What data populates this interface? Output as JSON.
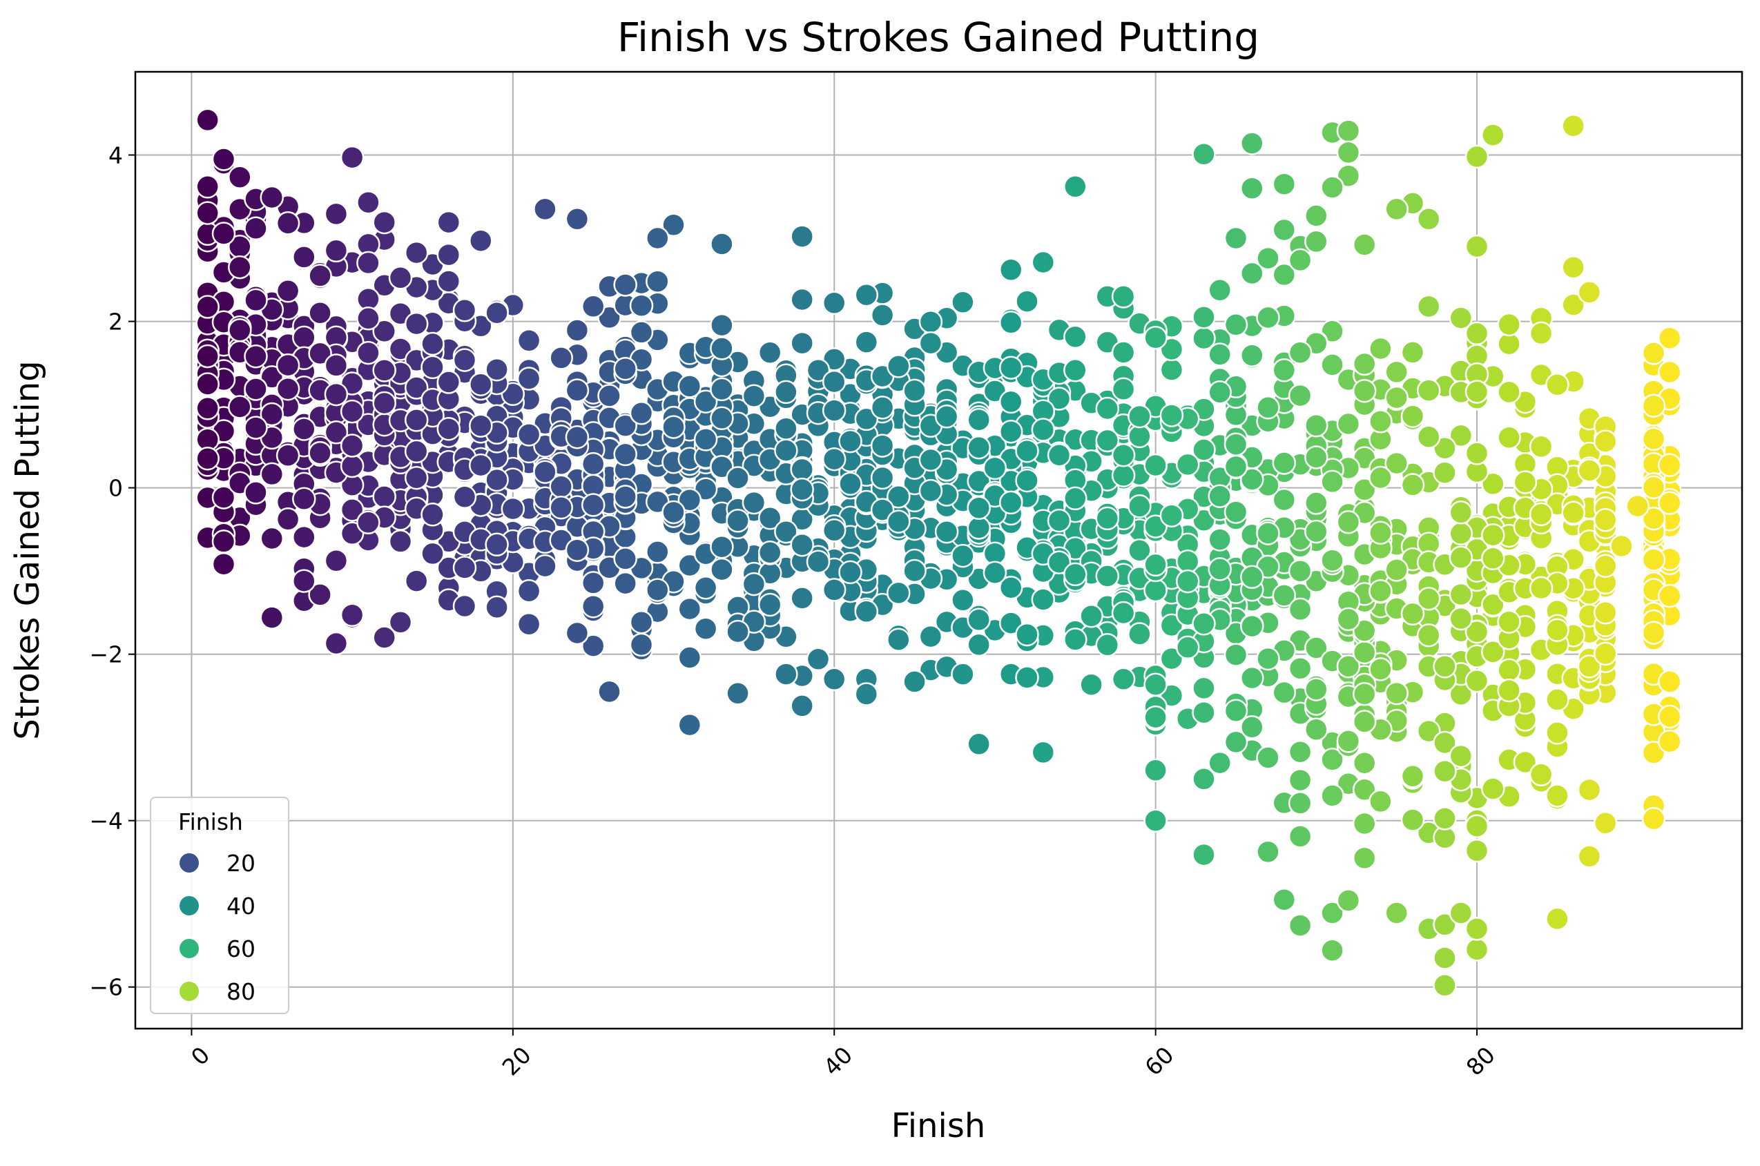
{
  "chart_data": {
    "type": "scatter",
    "title": "Finish vs Strokes Gained Putting",
    "xlabel": "Finish",
    "ylabel": "Strokes Gained Putting",
    "xlim": [
      -3.5,
      96.5
    ],
    "ylim": [
      -6.5,
      5.0
    ],
    "xticks": [
      0,
      20,
      40,
      60,
      80
    ],
    "yticks": [
      -6,
      -4,
      -2,
      0,
      2,
      4
    ],
    "xtick_labels": [
      "0",
      "20",
      "40",
      "60",
      "80"
    ],
    "ytick_labels": [
      "−6",
      "−4",
      "−2",
      "0",
      "2",
      "4"
    ],
    "xtick_rotation": 45,
    "grid": true,
    "colormap": "viridis",
    "color_range": [
      1,
      92
    ],
    "marker_edge_color": "#ffffff",
    "legend": {
      "title": "Finish",
      "placement": "lower-left",
      "entries": [
        {
          "label": "20",
          "color": "#3b528b"
        },
        {
          "label": "40",
          "color": "#21918c"
        },
        {
          "label": "60",
          "color": "#2fb47c"
        },
        {
          "label": "80",
          "color": "#a5db36"
        }
      ]
    },
    "bands": [
      {
        "finish": 1,
        "min": -0.6,
        "max": 3.6
      },
      {
        "finish": 2,
        "min": -1.1,
        "max": 3.9
      },
      {
        "finish": 5,
        "min": -1.4,
        "max": 3.4
      },
      {
        "finish": 10,
        "min": -1.6,
        "max": 3.3
      },
      {
        "finish": 15,
        "min": -1.8,
        "max": 2.9
      },
      {
        "finish": 20,
        "min": -1.8,
        "max": 2.4
      },
      {
        "finish": 25,
        "min": -1.9,
        "max": 2.4
      },
      {
        "finish": 30,
        "min": -2.0,
        "max": 2.5
      },
      {
        "finish": 35,
        "min": -2.2,
        "max": 2.3
      },
      {
        "finish": 40,
        "min": -2.3,
        "max": 2.4
      },
      {
        "finish": 45,
        "min": -2.3,
        "max": 2.3
      },
      {
        "finish": 50,
        "min": -2.2,
        "max": 2.2
      },
      {
        "finish": 55,
        "min": -2.4,
        "max": 2.3
      },
      {
        "finish": 58,
        "min": -2.3,
        "max": 2.3
      },
      {
        "finish": 60,
        "min": -4.0,
        "max": 2.8
      },
      {
        "finish": 63,
        "min": -3.5,
        "max": 2.8
      },
      {
        "finish": 66,
        "min": -4.3,
        "max": 3.1
      },
      {
        "finish": 70,
        "min": -4.6,
        "max": 3.1
      },
      {
        "finish": 74,
        "min": -4.4,
        "max": 3.2
      },
      {
        "finish": 78,
        "min": -4.9,
        "max": 2.9
      },
      {
        "finish": 80,
        "min": -4.6,
        "max": 2.9
      },
      {
        "finish": 83,
        "min": -4.0,
        "max": 2.4
      },
      {
        "finish": 86,
        "min": -3.6,
        "max": 2.2
      },
      {
        "finish": 88,
        "min": -2.6,
        "max": 0.8
      },
      {
        "finish": 91,
        "min": -3.2,
        "max": 1.7
      },
      {
        "finish": 92,
        "min": -3.1,
        "max": 1.8
      }
    ],
    "outliers": [
      {
        "x": 1,
        "y": 4.42
      },
      {
        "x": 2,
        "y": 3.95
      },
      {
        "x": 1,
        "y": 3.62
      },
      {
        "x": 4,
        "y": 3.47
      },
      {
        "x": 5,
        "y": 3.49
      },
      {
        "x": 6,
        "y": 3.18
      },
      {
        "x": 10,
        "y": 3.97
      },
      {
        "x": 11,
        "y": 3.43
      },
      {
        "x": 12,
        "y": 3.19
      },
      {
        "x": 16,
        "y": 3.19
      },
      {
        "x": 18,
        "y": 2.97
      },
      {
        "x": 9,
        "y": -1.87
      },
      {
        "x": 12,
        "y": -1.8
      },
      {
        "x": 5,
        "y": -1.56
      },
      {
        "x": 22,
        "y": 3.35
      },
      {
        "x": 24,
        "y": 3.23
      },
      {
        "x": 30,
        "y": 3.16
      },
      {
        "x": 29,
        "y": 3.0
      },
      {
        "x": 33,
        "y": 2.93
      },
      {
        "x": 38,
        "y": 3.02
      },
      {
        "x": 26,
        "y": -2.45
      },
      {
        "x": 31,
        "y": -2.85
      },
      {
        "x": 34,
        "y": -2.47
      },
      {
        "x": 38,
        "y": -2.62
      },
      {
        "x": 42,
        "y": -2.48
      },
      {
        "x": 45,
        "y": -2.33
      },
      {
        "x": 49,
        "y": -3.08
      },
      {
        "x": 53,
        "y": -3.18
      },
      {
        "x": 55,
        "y": 3.62
      },
      {
        "x": 53,
        "y": 2.71
      },
      {
        "x": 51,
        "y": 2.62
      },
      {
        "x": 63,
        "y": 4.01
      },
      {
        "x": 66,
        "y": 4.14
      },
      {
        "x": 66,
        "y": 3.6
      },
      {
        "x": 68,
        "y": 3.65
      },
      {
        "x": 63,
        "y": -4.41
      },
      {
        "x": 71,
        "y": 4.27
      },
      {
        "x": 72,
        "y": 4.29
      },
      {
        "x": 72,
        "y": 4.03
      },
      {
        "x": 72,
        "y": 3.75
      },
      {
        "x": 71,
        "y": 3.61
      },
      {
        "x": 70,
        "y": 3.27
      },
      {
        "x": 68,
        "y": -4.95
      },
      {
        "x": 69,
        "y": -5.26
      },
      {
        "x": 71,
        "y": -5.56
      },
      {
        "x": 71,
        "y": -5.11
      },
      {
        "x": 72,
        "y": -4.96
      },
      {
        "x": 75,
        "y": -5.11
      },
      {
        "x": 76,
        "y": 3.42
      },
      {
        "x": 77,
        "y": 3.23
      },
      {
        "x": 75,
        "y": 3.35
      },
      {
        "x": 80,
        "y": 3.98
      },
      {
        "x": 81,
        "y": 4.24
      },
      {
        "x": 86,
        "y": 4.35
      },
      {
        "x": 77,
        "y": -5.3
      },
      {
        "x": 78,
        "y": -5.98
      },
      {
        "x": 78,
        "y": -5.65
      },
      {
        "x": 78,
        "y": -5.25
      },
      {
        "x": 80,
        "y": -5.55
      },
      {
        "x": 80,
        "y": -5.3
      },
      {
        "x": 79,
        "y": -5.11
      },
      {
        "x": 85,
        "y": -5.18
      },
      {
        "x": 86,
        "y": 2.65
      },
      {
        "x": 87,
        "y": 2.35
      },
      {
        "x": 87,
        "y": -4.43
      },
      {
        "x": 88,
        "y": -4.03
      },
      {
        "x": 87,
        "y": -3.63
      },
      {
        "x": 85,
        "y": -3.7
      },
      {
        "x": 89,
        "y": -0.7
      },
      {
        "x": 90,
        "y": -0.22
      },
      {
        "x": 91,
        "y": -3.82
      },
      {
        "x": 91,
        "y": -3.98
      },
      {
        "x": 91,
        "y": -2.72
      },
      {
        "x": 92,
        "y": -2.75
      },
      {
        "x": 92,
        "y": -2.33
      },
      {
        "x": 92,
        "y": -3.05
      },
      {
        "x": 91,
        "y": 1.62
      },
      {
        "x": 92,
        "y": 1.8
      }
    ],
    "point_count": 1900
  }
}
